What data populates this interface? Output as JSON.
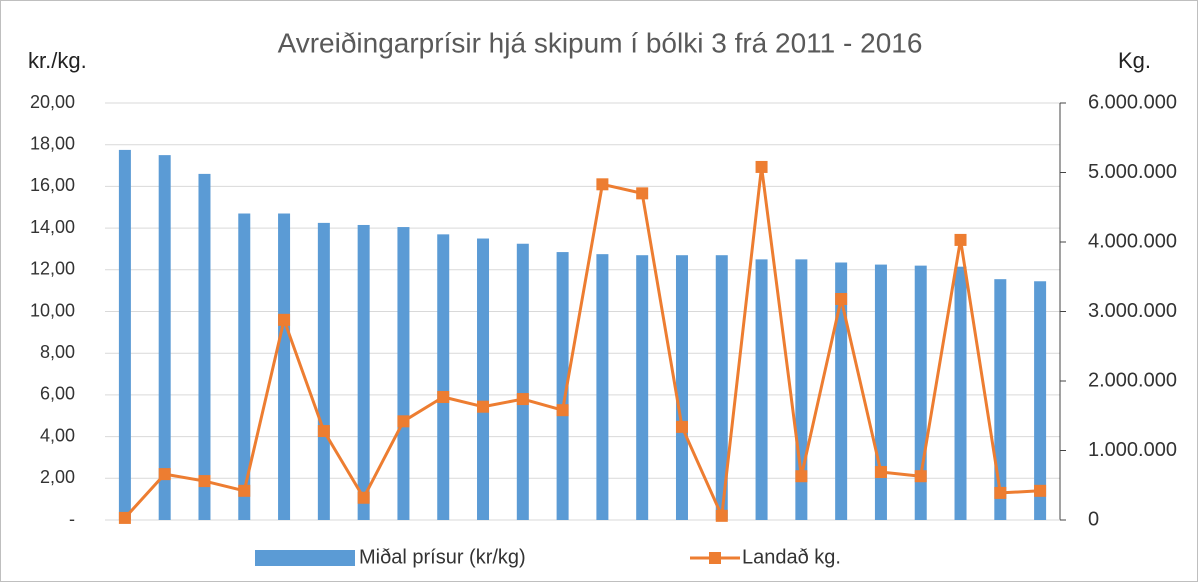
{
  "chart_data": {
    "type": "bar",
    "title": "Avreiðingarprísir hjá skipum í bólki 3 frá 2011 - 2016",
    "y_label": "kr./kg.",
    "y2_label": "Kg.",
    "categories": [
      null,
      null,
      null,
      null,
      null,
      null,
      null,
      null,
      null,
      null,
      null,
      null,
      null,
      null,
      null,
      null,
      null,
      null,
      null,
      null,
      null,
      null,
      null,
      null
    ],
    "series": [
      {
        "name": "Miðal prísur (kr/kg)",
        "type": "bar",
        "color": "#5b9bd5",
        "axis": "y",
        "values": [
          17.75,
          17.5,
          16.6,
          14.7,
          14.7,
          14.25,
          14.15,
          14.05,
          13.7,
          13.5,
          13.25,
          12.85,
          12.75,
          12.7,
          12.7,
          12.7,
          12.5,
          12.5,
          12.35,
          12.25,
          12.2,
          12.15,
          11.55,
          11.45
        ]
      },
      {
        "name": "Landað kg.",
        "type": "line",
        "color": "#ed7d31",
        "axis": "y2",
        "values": [
          30000,
          660000,
          560000,
          420000,
          2880000,
          1280000,
          320000,
          1420000,
          1770000,
          1630000,
          1740000,
          1580000,
          4830000,
          4700000,
          1340000,
          60000,
          5080000,
          630000,
          3180000,
          690000,
          630000,
          4030000,
          390000,
          420000
        ]
      }
    ],
    "ylim": [
      0,
      20
    ],
    "yticks": [
      {
        "value": 0,
        "label": "-"
      },
      {
        "value": 2,
        "label": "2,00"
      },
      {
        "value": 4,
        "label": "4,00"
      },
      {
        "value": 6,
        "label": "6,00"
      },
      {
        "value": 8,
        "label": "8,00"
      },
      {
        "value": 10,
        "label": "10,00"
      },
      {
        "value": 12,
        "label": "12,00"
      },
      {
        "value": 14,
        "label": "14,00"
      },
      {
        "value": 16,
        "label": "16,00"
      },
      {
        "value": 18,
        "label": "18,00"
      },
      {
        "value": 20,
        "label": "20,00"
      }
    ],
    "y2lim": [
      0,
      6000000
    ],
    "y2ticks": [
      0,
      {
        "value": 1000000,
        "label": "1.000.000"
      },
      {
        "value": 2000000,
        "label": "2.000.000"
      },
      {
        "value": 3000000,
        "label": "3.000.000"
      },
      {
        "value": 4000000,
        "label": "4.000.000"
      },
      {
        "value": 5000000,
        "label": "5.000.000"
      },
      {
        "value": 6000000,
        "label": "6.000.000"
      }
    ],
    "grid": true,
    "legend": "bottom"
  }
}
